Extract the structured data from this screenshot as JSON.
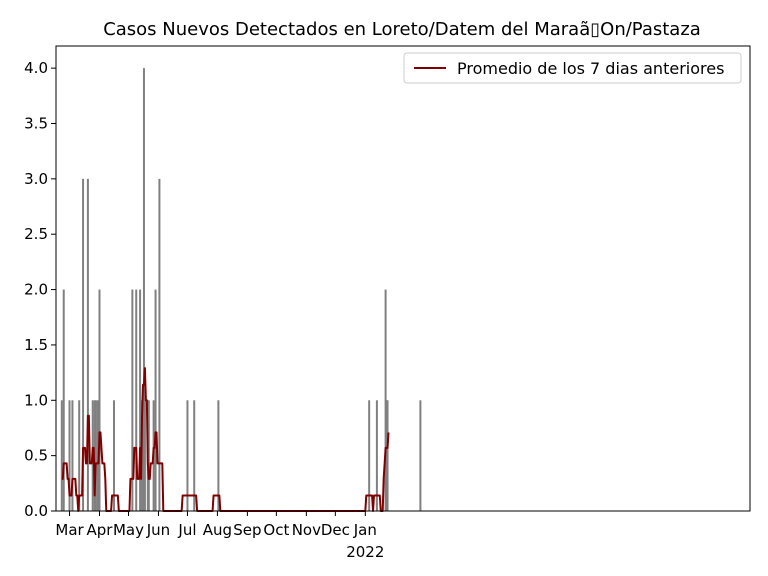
{
  "chart_data": {
    "type": "bar",
    "title": "Casos Nuevos Detectados en Loreto/Datem del Maraã▯On/Pastaza",
    "xlabel": "",
    "ylabel": "",
    "ylim": [
      0,
      4.2
    ],
    "xlim": [
      "2020-02-16",
      "2022-02-03"
    ],
    "grid": false,
    "legend_position": "top-right",
    "y_ticks": [
      "0.0",
      "0.5",
      "1.0",
      "1.5",
      "2.0",
      "2.5",
      "3.0",
      "3.5",
      "4.0"
    ],
    "x_ticks": [
      {
        "date": "2020-03-01",
        "label": "Mar"
      },
      {
        "date": "2020-04-01",
        "label": "Apr"
      },
      {
        "date": "2020-05-01",
        "label": "May"
      },
      {
        "date": "2020-06-01",
        "label": "Jun"
      },
      {
        "date": "2020-07-01",
        "label": "Jul"
      },
      {
        "date": "2020-08-01",
        "label": "Aug"
      },
      {
        "date": "2020-09-01",
        "label": "Sep"
      },
      {
        "date": "2020-10-01",
        "label": "Oct"
      },
      {
        "date": "2020-11-01",
        "label": "Nov"
      },
      {
        "date": "2020-12-01",
        "label": "Dec"
      },
      {
        "date": "2021-01-01",
        "label": "Jan",
        "sublabel": "2022"
      }
    ],
    "bar_color": "#808080",
    "line_color": "#800000",
    "series": [
      {
        "kind": "bar",
        "points": [
          [
            "2020-02-22",
            1
          ],
          [
            "2020-02-24",
            2
          ],
          [
            "2020-03-01",
            1
          ],
          [
            "2020-03-04",
            1
          ],
          [
            "2020-03-11",
            1
          ],
          [
            "2020-03-15",
            3
          ],
          [
            "2020-03-20",
            3
          ],
          [
            "2020-03-25",
            1
          ],
          [
            "2020-03-27",
            1
          ],
          [
            "2020-03-28",
            1
          ],
          [
            "2020-03-30",
            1
          ],
          [
            "2020-04-01",
            2
          ],
          [
            "2020-04-16",
            1
          ],
          [
            "2020-05-05",
            2
          ],
          [
            "2020-05-09",
            2
          ],
          [
            "2020-05-13",
            2
          ],
          [
            "2020-05-15",
            1
          ],
          [
            "2020-05-17",
            4
          ],
          [
            "2020-05-18",
            1
          ],
          [
            "2020-05-21",
            1
          ],
          [
            "2020-05-22",
            1
          ],
          [
            "2020-05-27",
            1
          ],
          [
            "2020-05-29",
            2
          ],
          [
            "2020-06-02",
            3
          ],
          [
            "2020-07-01",
            1
          ],
          [
            "2020-07-08",
            1
          ],
          [
            "2020-08-02",
            1
          ],
          [
            "2021-01-05",
            1
          ],
          [
            "2021-01-13",
            1
          ],
          [
            "2021-01-22",
            2
          ],
          [
            "2021-01-23",
            1
          ],
          [
            "2021-01-24",
            1
          ],
          [
            "2021-02-27",
            1
          ]
        ]
      },
      {
        "kind": "line",
        "name": "Promedio de los 7 dias anteriores",
        "points": [
          [
            "2020-02-22",
            0.29
          ],
          [
            "2020-02-23",
            0.29
          ],
          [
            "2020-02-24",
            0.43
          ],
          [
            "2020-02-27",
            0.43
          ],
          [
            "2020-02-28",
            0.29
          ],
          [
            "2020-02-29",
            0.29
          ],
          [
            "2020-03-01",
            0.14
          ],
          [
            "2020-03-03",
            0.14
          ],
          [
            "2020-03-04",
            0.29
          ],
          [
            "2020-03-07",
            0.29
          ],
          [
            "2020-03-08",
            0.14
          ],
          [
            "2020-03-09",
            0.14
          ],
          [
            "2020-03-10",
            0.0
          ],
          [
            "2020-03-11",
            0.14
          ],
          [
            "2020-03-14",
            0.14
          ],
          [
            "2020-03-15",
            0.57
          ],
          [
            "2020-03-17",
            0.57
          ],
          [
            "2020-03-18",
            0.43
          ],
          [
            "2020-03-19",
            0.43
          ],
          [
            "2020-03-20",
            0.86
          ],
          [
            "2020-03-21",
            0.86
          ],
          [
            "2020-03-22",
            0.43
          ],
          [
            "2020-03-24",
            0.43
          ],
          [
            "2020-03-25",
            0.57
          ],
          [
            "2020-03-26",
            0.57
          ],
          [
            "2020-03-27",
            0.14
          ],
          [
            "2020-03-28",
            0.43
          ],
          [
            "2020-03-31",
            0.43
          ],
          [
            "2020-04-01",
            0.71
          ],
          [
            "2020-04-02",
            0.71
          ],
          [
            "2020-04-04",
            0.43
          ],
          [
            "2020-04-06",
            0.43
          ],
          [
            "2020-04-07",
            0.29
          ],
          [
            "2020-04-08",
            0.0
          ],
          [
            "2020-04-13",
            0.0
          ],
          [
            "2020-04-14",
            0.14
          ],
          [
            "2020-04-20",
            0.14
          ],
          [
            "2020-04-21",
            0.0
          ],
          [
            "2020-05-02",
            0.0
          ],
          [
            "2020-05-03",
            0.29
          ],
          [
            "2020-05-06",
            0.29
          ],
          [
            "2020-05-07",
            0.57
          ],
          [
            "2020-05-09",
            0.57
          ],
          [
            "2020-05-10",
            0.29
          ],
          [
            "2020-05-12",
            0.29
          ],
          [
            "2020-05-13",
            0.57
          ],
          [
            "2020-05-14",
            0.29
          ],
          [
            "2020-05-15",
            0.86
          ],
          [
            "2020-05-16",
            1.14
          ],
          [
            "2020-05-17",
            1.14
          ],
          [
            "2020-05-18",
            1.29
          ],
          [
            "2020-05-19",
            1.0
          ],
          [
            "2020-05-20",
            1.0
          ],
          [
            "2020-05-21",
            0.43
          ],
          [
            "2020-05-22",
            0.29
          ],
          [
            "2020-05-23",
            0.29
          ],
          [
            "2020-05-24",
            0.43
          ],
          [
            "2020-05-26",
            0.43
          ],
          [
            "2020-05-27",
            0.57
          ],
          [
            "2020-05-28",
            0.57
          ],
          [
            "2020-05-29",
            0.71
          ],
          [
            "2020-05-30",
            0.71
          ],
          [
            "2020-05-31",
            0.43
          ],
          [
            "2020-06-05",
            0.43
          ],
          [
            "2020-06-06",
            0.0
          ],
          [
            "2020-06-25",
            0.0
          ],
          [
            "2020-06-26",
            0.14
          ],
          [
            "2020-07-10",
            0.14
          ],
          [
            "2020-07-11",
            0.0
          ],
          [
            "2020-07-27",
            0.0
          ],
          [
            "2020-07-28",
            0.14
          ],
          [
            "2020-08-03",
            0.14
          ],
          [
            "2020-08-04",
            0.0
          ],
          [
            "2021-01-01",
            0.0
          ],
          [
            "2021-01-02",
            0.14
          ],
          [
            "2021-01-08",
            0.14
          ],
          [
            "2021-01-09",
            0.0
          ],
          [
            "2021-01-10",
            0.14
          ],
          [
            "2021-01-16",
            0.14
          ],
          [
            "2021-01-17",
            0.0
          ],
          [
            "2021-01-19",
            0.0
          ],
          [
            "2021-01-20",
            0.29
          ],
          [
            "2021-01-21",
            0.43
          ],
          [
            "2021-01-22",
            0.57
          ],
          [
            "2021-01-24",
            0.57
          ],
          [
            "2021-01-25",
            0.71
          ]
        ]
      }
    ]
  }
}
